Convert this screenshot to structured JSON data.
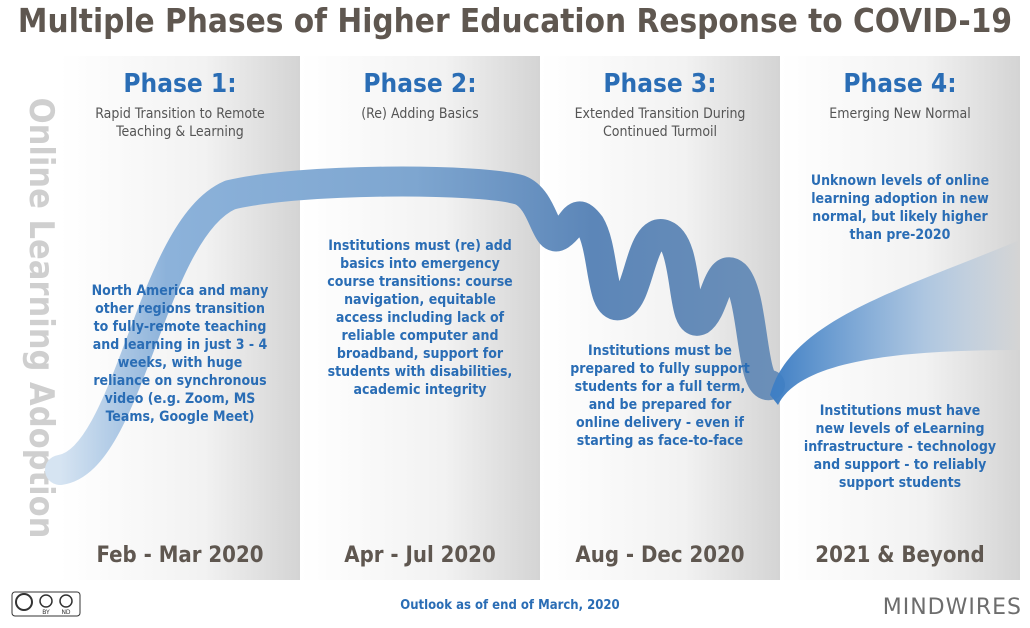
{
  "header": {
    "title": "Multiple Phases of Higher Education Response to COVID-19"
  },
  "side_label": "Online Learning Adoption",
  "phases": [
    {
      "title": "Phase 1:",
      "subtitle": [
        "Rapid Transition to Remote",
        "Teaching & Learning"
      ],
      "notes": [
        [
          "North America and many",
          "other regions transition",
          "to fully-remote teaching",
          "and learning in just 3 - 4",
          "weeks, with huge",
          "reliance on synchronous",
          "video (e.g. Zoom, MS",
          "Teams, Google Meet)"
        ]
      ],
      "dates": "Feb - Mar 2020"
    },
    {
      "title": "Phase 2:",
      "subtitle": [
        "(Re) Adding Basics"
      ],
      "notes": [
        [
          "Institutions must (re) add",
          "basics into emergency",
          "course transitions: course",
          "navigation, equitable",
          "access including lack of",
          "reliable computer and",
          "broadband, support for",
          "students with disabilities,",
          "academic integrity"
        ]
      ],
      "dates": "Apr - Jul 2020"
    },
    {
      "title": "Phase 3:",
      "subtitle": [
        "Extended Transition During",
        "Continued Turmoil"
      ],
      "notes": [
        [
          "Institutions must be",
          "prepared to fully support",
          "students for a full term,",
          "and be prepared for",
          "online delivery - even if",
          "starting as face-to-face"
        ]
      ],
      "dates": "Aug - Dec 2020"
    },
    {
      "title": "Phase 4:",
      "subtitle": [
        "Emerging New Normal"
      ],
      "notes": [
        [
          "Unknown levels of online",
          "learning adoption in new",
          "normal, but likely higher",
          "than pre-2020"
        ],
        [
          "Institutions must have",
          "new levels of eLearning",
          "infrastructure - technology",
          "and support - to reliably",
          "support students"
        ]
      ],
      "dates": "2021 & Beyond"
    }
  ],
  "footer": {
    "outlook": "Outlook as of end of March, 2020",
    "license": [
      "BY",
      "ND"
    ],
    "logo": "MINDWIRES"
  }
}
